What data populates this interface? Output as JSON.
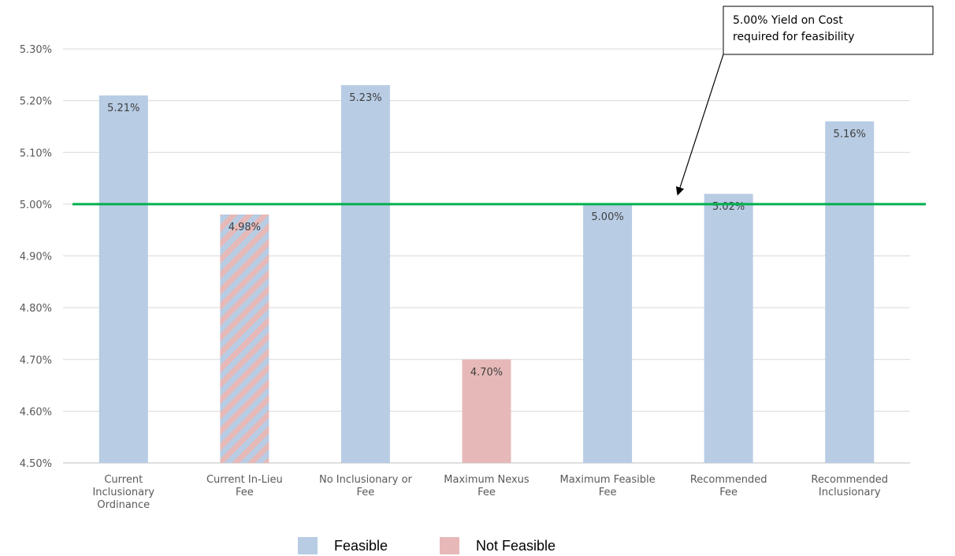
{
  "chart_data": {
    "type": "bar",
    "categories": [
      [
        "Current",
        "Inclusionary",
        "Ordinance"
      ],
      [
        "Current In-Lieu",
        "Fee"
      ],
      [
        "No Inclusionary or",
        "Fee"
      ],
      [
        "Maximum Nexus",
        "Fee"
      ],
      [
        "Maximum Feasible",
        "Fee"
      ],
      [
        "Recommended",
        "Fee"
      ],
      [
        "Recommended",
        "Inclusionary"
      ]
    ],
    "values": [
      5.21,
      4.98,
      5.23,
      4.7,
      5.0,
      5.02,
      5.16
    ],
    "value_labels": [
      "5.21%",
      "4.98%",
      "5.23%",
      "4.70%",
      "5.00%",
      "5.02%",
      "5.16%"
    ],
    "feasibility": [
      "Feasible",
      "Mixed",
      "Feasible",
      "Not Feasible",
      "Feasible",
      "Feasible",
      "Feasible"
    ],
    "ylim": [
      4.5,
      5.3
    ],
    "yticks": [
      "4.50%",
      "4.60%",
      "4.70%",
      "4.80%",
      "4.90%",
      "5.00%",
      "5.10%",
      "5.20%",
      "5.30%"
    ],
    "grid": true,
    "threshold": {
      "value": 5.0,
      "color": "#00b050"
    },
    "annotation": {
      "lines": [
        "5.00% Yield on Cost",
        "required for feasibility"
      ]
    },
    "legend": {
      "position": "bottom",
      "entries": [
        {
          "label": "Feasible",
          "color": "#b8cce4"
        },
        {
          "label": "Not Feasible",
          "color": "#e6b9b8"
        }
      ]
    },
    "colors": {
      "feasible": "#b8cce4",
      "not_feasible": "#e6b9b8"
    }
  }
}
